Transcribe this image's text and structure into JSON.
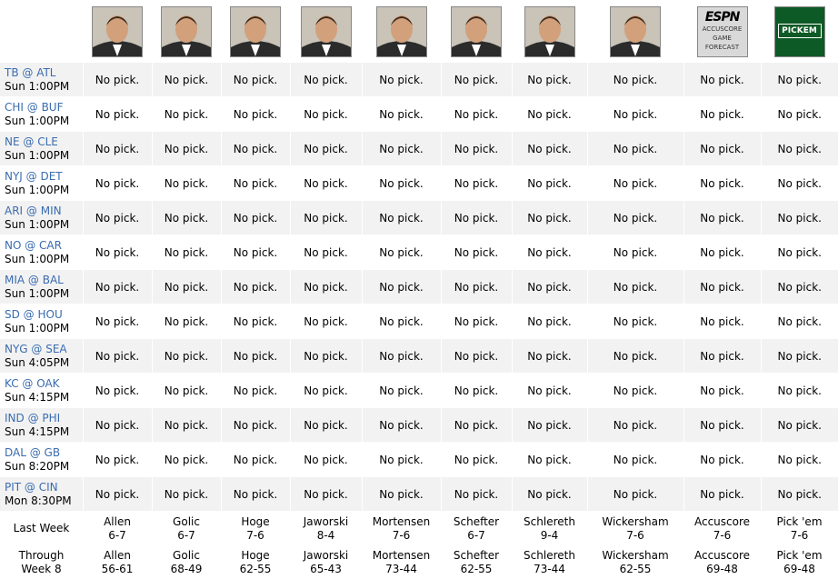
{
  "analysts": [
    {
      "name": "Allen",
      "avatar": "analyst-photo"
    },
    {
      "name": "Golic",
      "avatar": "analyst-photo"
    },
    {
      "name": "Hoge",
      "avatar": "analyst-photo"
    },
    {
      "name": "Jaworski",
      "avatar": "analyst-photo"
    },
    {
      "name": "Mortensen",
      "avatar": "analyst-photo"
    },
    {
      "name": "Schefter",
      "avatar": "analyst-photo"
    },
    {
      "name": "Schlereth",
      "avatar": "analyst-photo"
    },
    {
      "name": "Wickersham",
      "avatar": "analyst-photo"
    },
    {
      "name": "Accuscore",
      "avatar": "accuscore-logo",
      "logo_lines": [
        "ESPN",
        "ACCUSCORE",
        "GAME",
        "FORECAST"
      ]
    },
    {
      "name": "Pick 'em",
      "avatar": "pickem-logo",
      "logo_text": "PICKEM"
    }
  ],
  "pick_text": "No pick.",
  "games": [
    {
      "matchup": "TB @ ATL",
      "time": "Sun 1:00PM"
    },
    {
      "matchup": "CHI @ BUF",
      "time": "Sun 1:00PM"
    },
    {
      "matchup": "NE @ CLE",
      "time": "Sun 1:00PM"
    },
    {
      "matchup": "NYJ @ DET",
      "time": "Sun 1:00PM"
    },
    {
      "matchup": "ARI @ MIN",
      "time": "Sun 1:00PM"
    },
    {
      "matchup": "NO @ CAR",
      "time": "Sun 1:00PM"
    },
    {
      "matchup": "MIA @ BAL",
      "time": "Sun 1:00PM"
    },
    {
      "matchup": "SD @ HOU",
      "time": "Sun 1:00PM"
    },
    {
      "matchup": "NYG @ SEA",
      "time": "Sun 4:05PM"
    },
    {
      "matchup": "KC @ OAK",
      "time": "Sun 4:15PM"
    },
    {
      "matchup": "IND @ PHI",
      "time": "Sun 4:15PM"
    },
    {
      "matchup": "DAL @ GB",
      "time": "Sun 8:20PM"
    },
    {
      "matchup": "PIT @ CIN",
      "time": "Mon 8:30PM"
    }
  ],
  "last_week": {
    "label": "Last Week",
    "records": [
      "6-7",
      "6-7",
      "7-6",
      "8-4",
      "7-6",
      "6-7",
      "9-4",
      "7-6",
      "7-6",
      "7-6"
    ]
  },
  "through": {
    "label_line1": "Through",
    "label_line2": "Week 8",
    "records": [
      "56-61",
      "68-49",
      "62-55",
      "65-43",
      "73-44",
      "62-55",
      "73-44",
      "62-55",
      "69-48",
      "69-48"
    ]
  },
  "colors": {
    "matchup_link": "#3a6cb0",
    "row_alt": "#f2f2f2",
    "pickem_green": "#0d5a26"
  }
}
